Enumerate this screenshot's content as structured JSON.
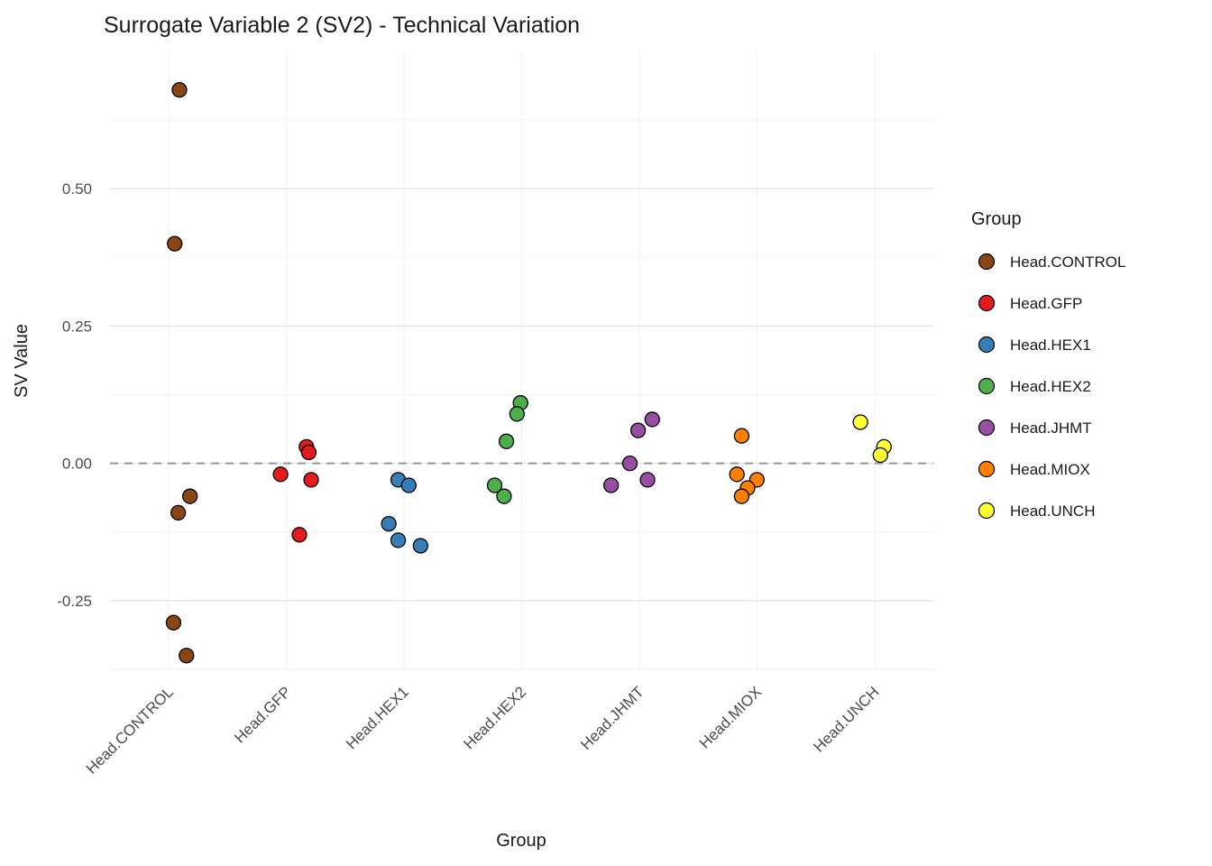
{
  "chart_data": {
    "type": "scatter",
    "title": "Surrogate Variable 2 (SV2) - Technical Variation",
    "xlabel": "Group",
    "ylabel": "SV Value",
    "legend_title": "Group",
    "legend_position": "right",
    "grid": true,
    "background": "#ffffff",
    "major_grid_color": "#e4e4e4",
    "minor_grid_color": "#f2f2f2",
    "zero_line_color": "#999999",
    "point_stroke": "#000000",
    "ylim": [
      -0.38,
      0.75
    ],
    "yticks": [
      {
        "value": -0.25,
        "label": "-0.25"
      },
      {
        "value": 0.0,
        "label": "0.00"
      },
      {
        "value": 0.25,
        "label": "0.25"
      },
      {
        "value": 0.5,
        "label": "0.50"
      }
    ],
    "minor_gridlines": [
      0.625,
      0.375,
      0.125,
      -0.125,
      -0.375
    ],
    "zero_line": 0,
    "categories": [
      "Head.CONTROL",
      "Head.GFP",
      "Head.HEX1",
      "Head.HEX2",
      "Head.JHMT",
      "Head.MIOX",
      "Head.UNCH"
    ],
    "series": [
      {
        "name": "Head.CONTROL",
        "color": "#8B4513",
        "points": [
          {
            "value": 0.68,
            "dx": 0.09
          },
          {
            "value": 0.4,
            "dx": 0.05
          },
          {
            "value": -0.06,
            "dx": 0.18
          },
          {
            "value": -0.09,
            "dx": 0.08
          },
          {
            "value": -0.29,
            "dx": 0.04
          },
          {
            "value": -0.35,
            "dx": 0.15
          }
        ]
      },
      {
        "name": "Head.GFP",
        "color": "#E41A1C",
        "points": [
          {
            "value": 0.03,
            "dx": 0.17
          },
          {
            "value": 0.02,
            "dx": 0.19
          },
          {
            "value": -0.02,
            "dx": -0.05
          },
          {
            "value": -0.03,
            "dx": 0.21
          },
          {
            "value": -0.13,
            "dx": 0.11
          }
        ]
      },
      {
        "name": "Head.HEX1",
        "color": "#377EB8",
        "points": [
          {
            "value": -0.03,
            "dx": -0.05
          },
          {
            "value": -0.04,
            "dx": 0.04
          },
          {
            "value": -0.11,
            "dx": -0.13
          },
          {
            "value": -0.14,
            "dx": -0.05
          },
          {
            "value": -0.15,
            "dx": 0.14
          }
        ]
      },
      {
        "name": "Head.HEX2",
        "color": "#4DAF4A",
        "points": [
          {
            "value": 0.11,
            "dx": -0.01
          },
          {
            "value": 0.09,
            "dx": -0.04
          },
          {
            "value": 0.04,
            "dx": -0.13
          },
          {
            "value": -0.04,
            "dx": -0.23
          },
          {
            "value": -0.06,
            "dx": -0.15
          }
        ]
      },
      {
        "name": "Head.JHMT",
        "color": "#984EA3",
        "points": [
          {
            "value": 0.08,
            "dx": 0.11
          },
          {
            "value": 0.06,
            "dx": -0.01
          },
          {
            "value": 0.0,
            "dx": -0.08
          },
          {
            "value": -0.03,
            "dx": 0.07
          },
          {
            "value": -0.04,
            "dx": -0.24
          }
        ]
      },
      {
        "name": "Head.MIOX",
        "color": "#FF7F00",
        "points": [
          {
            "value": 0.05,
            "dx": -0.13
          },
          {
            "value": -0.02,
            "dx": -0.17
          },
          {
            "value": -0.03,
            "dx": 0.0
          },
          {
            "value": -0.045,
            "dx": -0.08
          },
          {
            "value": -0.06,
            "dx": -0.13
          }
        ]
      },
      {
        "name": "Head.UNCH",
        "color": "#FFFF33",
        "points": [
          {
            "value": 0.075,
            "dx": -0.12
          },
          {
            "value": 0.03,
            "dx": 0.08
          },
          {
            "value": 0.015,
            "dx": 0.05
          }
        ]
      }
    ]
  }
}
